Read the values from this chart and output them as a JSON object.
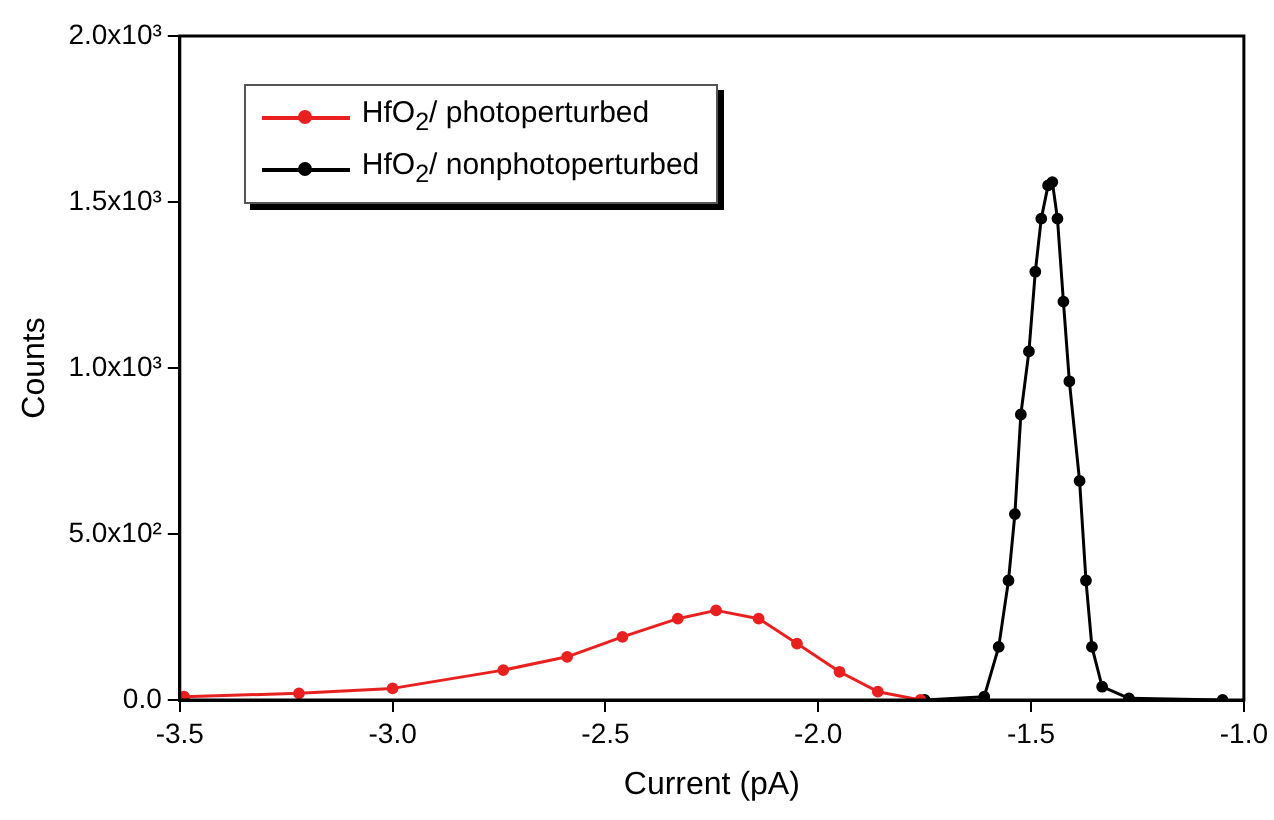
{
  "chart_data": {
    "type": "line",
    "xlabel": "Current (pA)",
    "ylabel": "Counts",
    "marker": "circle",
    "line_style": "solid",
    "legend": "top left",
    "grid": false,
    "xlim": [
      -3.5,
      -1.0
    ],
    "xticks": [
      {
        "value": -3.5,
        "label": "-3.5"
      },
      {
        "value": -3.0,
        "label": "-3.0"
      },
      {
        "value": -2.5,
        "label": "-2.5"
      },
      {
        "value": -2.0,
        "label": "-2.0"
      },
      {
        "value": -1.5,
        "label": "-1.5"
      },
      {
        "value": -1.0,
        "label": "-1.0"
      }
    ],
    "ylim": [
      0,
      2000
    ],
    "yticks": [
      {
        "value": 0,
        "label": "0.0"
      },
      {
        "value": 500,
        "label": "5.0x10²"
      },
      {
        "value": 1000,
        "label": "1.0x10³"
      },
      {
        "value": 1500,
        "label": "1.5x10³"
      },
      {
        "value": 2000,
        "label": "2.0x10³"
      }
    ],
    "series": [
      {
        "name": "HfO$_{2}$/ photoperturbed",
        "color": "#e8201f",
        "x": [
          -3.49,
          -3.22,
          -3.0,
          -2.74,
          -2.59,
          -2.46,
          -2.33,
          -2.24,
          -2.14,
          -2.05,
          -1.95,
          -1.86,
          -1.76
        ],
        "values": [
          10,
          20,
          35,
          90,
          130,
          190,
          245,
          270,
          245,
          170,
          85,
          25,
          0
        ]
      },
      {
        "name": "HfO$_{2}$/ nonphotoperturbed",
        "color": "#000000",
        "x": [
          -1.75,
          -1.61,
          -1.576,
          -1.553,
          -1.538,
          -1.524,
          -1.505,
          -1.49,
          -1.476,
          -1.46,
          -1.45,
          -1.438,
          -1.424,
          -1.41,
          -1.386,
          -1.371,
          -1.357,
          -1.333,
          -1.27,
          -1.05
        ],
        "values": [
          0,
          10,
          160,
          360,
          560,
          860,
          1050,
          1290,
          1450,
          1550,
          1560,
          1450,
          1200,
          960,
          660,
          360,
          160,
          40,
          5,
          0
        ]
      }
    ]
  }
}
